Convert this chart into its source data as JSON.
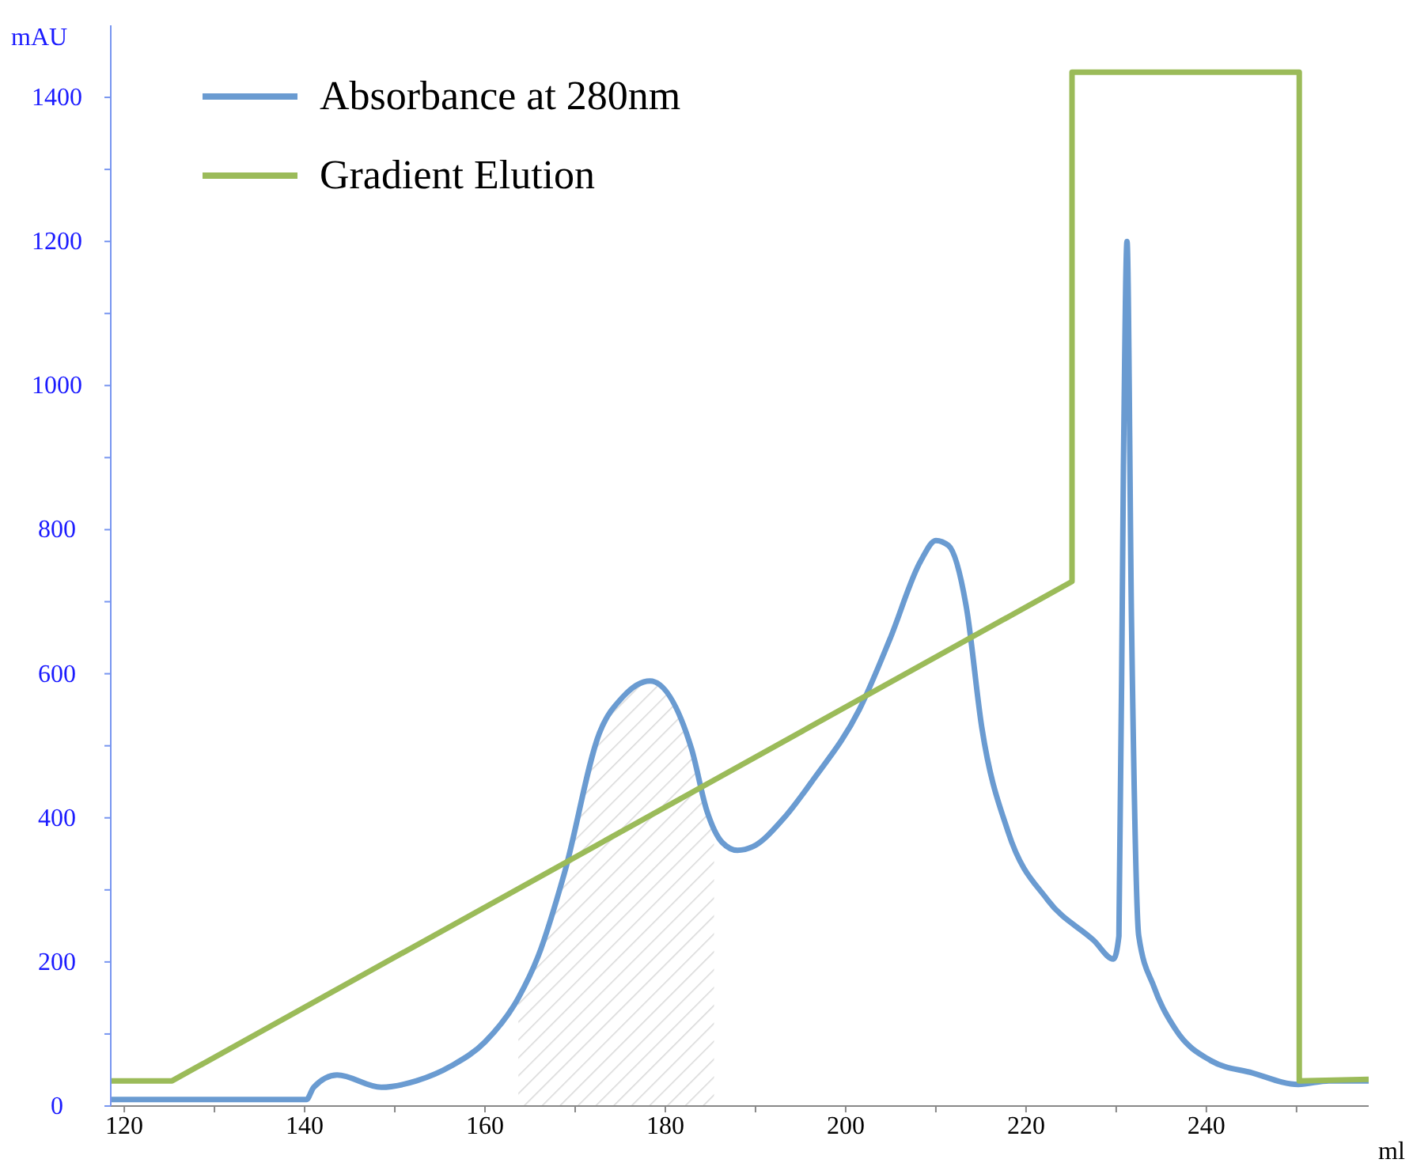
{
  "chart_data": {
    "type": "line",
    "xlabel": "ml",
    "ylabel": "mAU",
    "xlim": [
      118.5,
      258
    ],
    "ylim": [
      0,
      1500
    ],
    "xticks": [
      120,
      {
        "value": 130,
        "label": null
      },
      140,
      {
        "value": 150,
        "label": null
      },
      160,
      {
        "value": 170,
        "label": null
      },
      180,
      {
        "value": 190,
        "label": null
      },
      200,
      {
        "value": 210,
        "label": null
      },
      220,
      {
        "value": 230,
        "label": null
      },
      240,
      {
        "value": 250,
        "label": null
      }
    ],
    "yticks": [
      0,
      {
        "value": 100,
        "label": null
      },
      200,
      {
        "value": 300,
        "label": null
      },
      400,
      {
        "value": 500,
        "label": null
      },
      600,
      {
        "value": 700,
        "label": null
      },
      800,
      {
        "value": 900,
        "label": null
      },
      1000,
      {
        "value": 1100,
        "label": null
      },
      1200,
      {
        "value": 1300,
        "label": null
      },
      1400
    ],
    "grid": false,
    "legend": "top left",
    "series": [
      {
        "name": "Absorbance at 280nm",
        "color": "#6a9bd1",
        "x": [
          118.5,
          140.2,
          141,
          143.6,
          148.5,
          152.4,
          156.3,
          160,
          163.7,
          165.9,
          168.8,
          172.7,
          175.3,
          178.3,
          182.9,
          184.6,
          186.3,
          188,
          189.7,
          193.1,
          196.4,
          201.5,
          204.9,
          208.3,
          210,
          211.4,
          213.4,
          215.1,
          218,
          222.4,
          227.5,
          229.7,
          230.3,
          230.8,
          231.2,
          231.7,
          232.5,
          234.2,
          236.6,
          240.5,
          245.1,
          250.2,
          253.6,
          258
        ],
        "values": [
          9,
          9,
          26,
          43,
          26,
          35,
          56,
          89,
          150,
          208,
          323,
          518,
          568,
          590,
          496,
          410,
          366,
          355,
          360,
          399,
          453,
          550,
          648,
          756,
          785,
          778,
          691,
          525,
          381,
          286,
          230,
          204,
          236,
          886,
          1200,
          670,
          236,
          165,
          106,
          63,
          46,
          30,
          35,
          35
        ]
      },
      {
        "name": "Gradient Elution",
        "color": "#9bbb59",
        "x": [
          118.5,
          125.3,
          225.1,
          225.1,
          250.3,
          250.3,
          258
        ],
        "values": [
          35,
          35,
          728,
          1435,
          1435,
          35,
          37
        ]
      },
      {
        "type": "area",
        "color": "#bdbdbd",
        "x": [
          163.7,
          165.9,
          168.8,
          172.7,
          175.3,
          178.3,
          182.9,
          184.6,
          185.4
        ],
        "values": [
          150,
          208,
          323,
          518,
          568,
          590,
          496,
          410,
          385
        ]
      }
    ]
  }
}
